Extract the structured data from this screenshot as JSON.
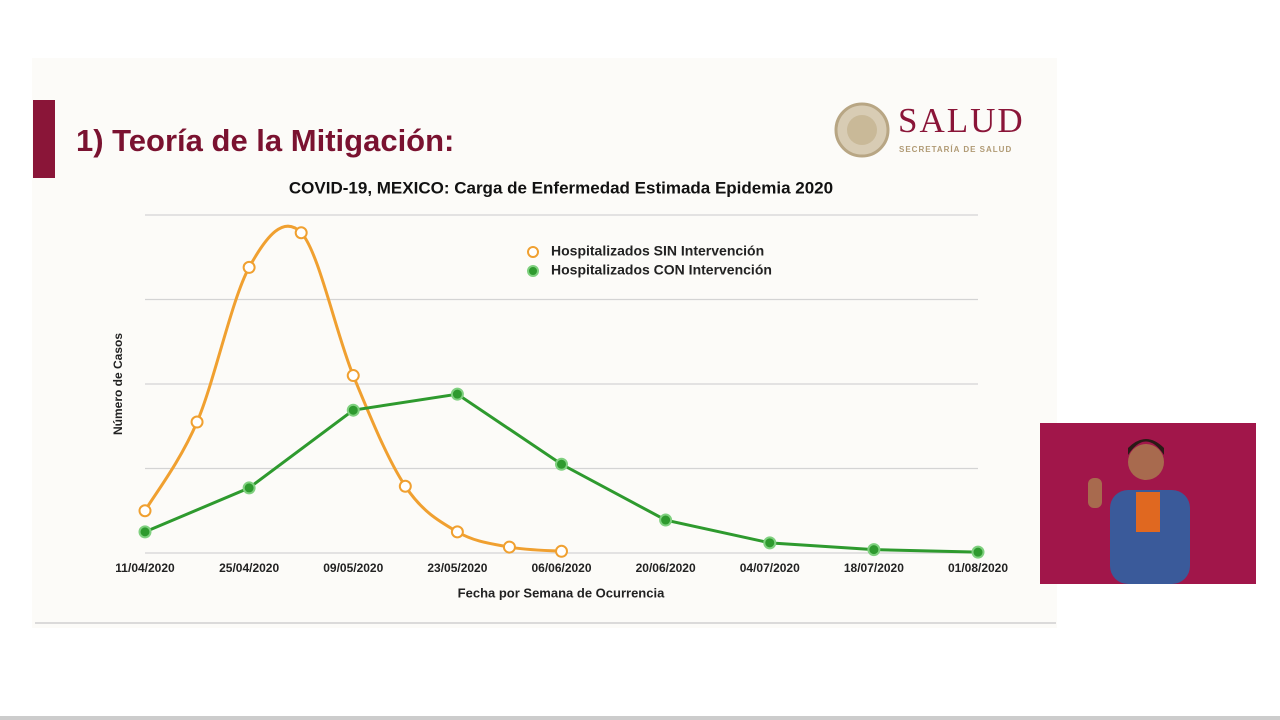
{
  "slide": {
    "title": "1) Teoría de la Mitigación:",
    "logo_title": "SALUD",
    "logo_subtitle": "SECRETARÍA DE SALUD"
  },
  "chart_data": {
    "type": "line",
    "title": "COVID-19, MEXICO: Carga de Enfermedad Estimada Epidemia 2020",
    "x_label": "Fecha por Semana de Ocurrencia",
    "y_label": "Número de Casos",
    "categories": [
      "11/04/2020",
      null,
      "25/04/2020",
      null,
      "09/05/2020",
      null,
      "23/05/2020",
      null,
      "06/06/2020",
      null,
      "20/06/2020",
      null,
      "04/07/2020",
      null,
      "18/07/2020",
      null,
      "01/08/2020"
    ],
    "ylim": [
      0,
      4
    ],
    "gridlines": [
      0,
      1,
      2,
      3,
      4
    ],
    "series": [
      {
        "name": "Hospitalizados SIN Intervención",
        "color": "#f0a030",
        "marker": "hollow",
        "smooth": true,
        "values": [
          0.5,
          1.55,
          3.38,
          3.79,
          2.1,
          0.79,
          0.25,
          0.07,
          0.02,
          null,
          null,
          null,
          null,
          null,
          null,
          null,
          null
        ]
      },
      {
        "name": "Hospitalizados CON Intervención",
        "color": "#2e9a2e",
        "marker": "filled",
        "smooth": false,
        "values": [
          0.25,
          null,
          0.77,
          null,
          1.69,
          null,
          1.88,
          null,
          1.05,
          null,
          0.39,
          null,
          0.12,
          null,
          0.04,
          null,
          0.01
        ]
      }
    ]
  }
}
